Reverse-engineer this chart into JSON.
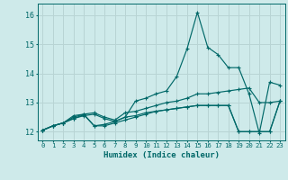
{
  "xlabel": "Humidex (Indice chaleur)",
  "xlim": [
    -0.5,
    23.5
  ],
  "ylim": [
    11.7,
    16.4
  ],
  "xticks": [
    0,
    1,
    2,
    3,
    4,
    5,
    6,
    7,
    8,
    9,
    10,
    11,
    12,
    13,
    14,
    15,
    16,
    17,
    18,
    19,
    20,
    21,
    22,
    23
  ],
  "yticks": [
    12,
    13,
    14,
    15,
    16
  ],
  "background_color": "#ceeaea",
  "grid_color": "#b8d4d4",
  "line_color": "#006868",
  "series": [
    {
      "x": [
        0,
        1,
        2,
        3,
        4,
        5,
        6,
        7,
        8,
        9,
        10,
        11,
        12,
        13,
        14,
        15,
        16,
        17,
        18,
        19,
        20,
        21,
        22,
        23
      ],
      "y": [
        12.05,
        12.2,
        12.3,
        12.55,
        12.6,
        12.2,
        12.25,
        12.35,
        12.5,
        13.05,
        13.15,
        13.3,
        13.4,
        13.9,
        14.85,
        16.1,
        14.9,
        14.65,
        14.2,
        14.2,
        13.3,
        11.95,
        13.7,
        13.6
      ]
    },
    {
      "x": [
        0,
        1,
        2,
        3,
        4,
        5,
        6,
        7,
        8,
        9,
        10,
        11,
        12,
        13,
        14,
        15,
        16,
        17,
        18,
        19,
        20,
        21,
        22,
        23
      ],
      "y": [
        12.05,
        12.2,
        12.3,
        12.5,
        12.6,
        12.65,
        12.5,
        12.4,
        12.65,
        12.7,
        12.8,
        12.9,
        13.0,
        13.05,
        13.15,
        13.3,
        13.3,
        13.35,
        13.4,
        13.45,
        13.5,
        13.0,
        13.0,
        13.05
      ]
    },
    {
      "x": [
        0,
        1,
        2,
        3,
        4,
        5,
        6,
        7,
        8,
        9,
        10,
        11,
        12,
        13,
        14,
        15,
        16,
        17,
        18,
        19,
        20,
        21,
        22,
        23
      ],
      "y": [
        12.05,
        12.2,
        12.3,
        12.45,
        12.55,
        12.6,
        12.45,
        12.35,
        12.5,
        12.55,
        12.65,
        12.7,
        12.75,
        12.8,
        12.85,
        12.9,
        12.9,
        12.9,
        12.9,
        12.0,
        12.0,
        12.0,
        12.0,
        13.05
      ]
    },
    {
      "x": [
        0,
        1,
        2,
        3,
        4,
        5,
        6,
        7,
        8,
        9,
        10,
        11,
        12,
        13,
        14,
        15,
        16,
        17,
        18,
        19,
        20,
        21,
        22,
        23
      ],
      "y": [
        12.05,
        12.2,
        12.3,
        12.45,
        12.58,
        12.2,
        12.2,
        12.3,
        12.4,
        12.5,
        12.6,
        12.7,
        12.75,
        12.8,
        12.85,
        12.9,
        12.9,
        12.9,
        12.9,
        12.0,
        12.0,
        12.0,
        12.0,
        13.05
      ]
    }
  ]
}
